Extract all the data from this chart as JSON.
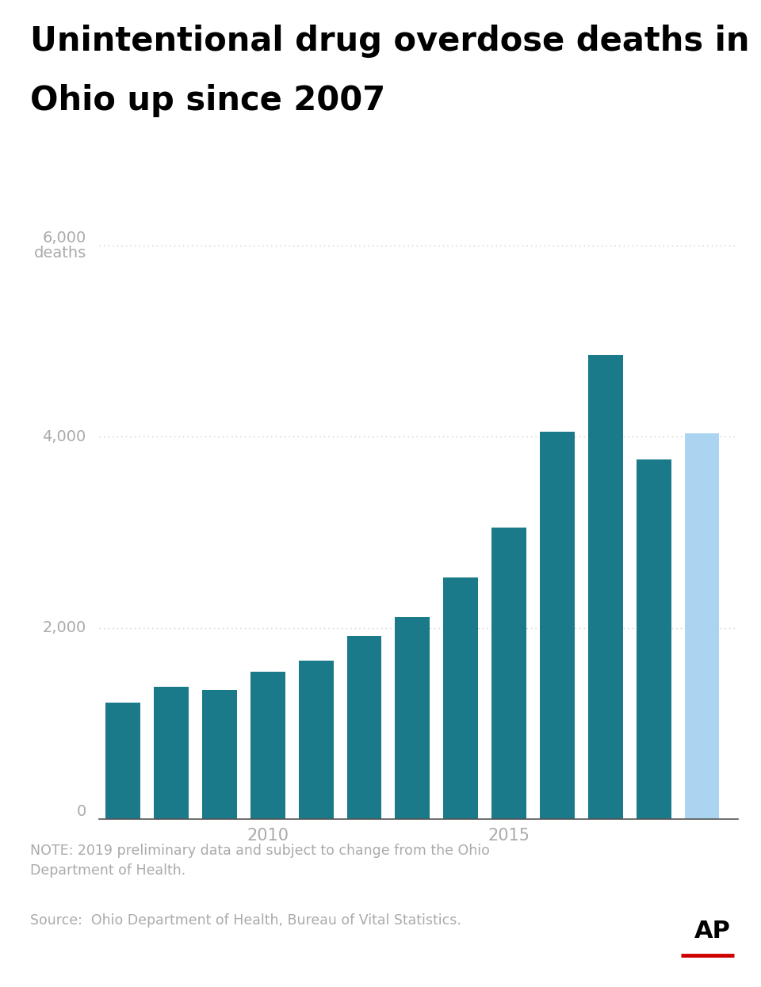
{
  "title_line1": "Unintentional drug overdose deaths in",
  "title_line2": "Ohio up since 2007",
  "years": [
    2007,
    2008,
    2009,
    2010,
    2011,
    2012,
    2013,
    2014,
    2015,
    2016,
    2017,
    2018,
    2019
  ],
  "values": [
    1218,
    1383,
    1350,
    1544,
    1654,
    1914,
    2110,
    2531,
    3050,
    4050,
    4854,
    3764,
    4030
  ],
  "bar_colors": [
    "#1a7a8a",
    "#1a7a8a",
    "#1a7a8a",
    "#1a7a8a",
    "#1a7a8a",
    "#1a7a8a",
    "#1a7a8a",
    "#1a7a8a",
    "#1a7a8a",
    "#1a7a8a",
    "#1a7a8a",
    "#1a7a8a",
    "#aad4f0"
  ],
  "ylim": [
    0,
    6500
  ],
  "yticks": [
    0,
    2000,
    4000,
    6000
  ],
  "xtick_years": [
    2010,
    2015
  ],
  "note_text": "NOTE: 2019 preliminary data and subject to change from the Ohio\nDepartment of Health.",
  "source_text": "Source:  Ohio Department of Health, Bureau of Vital Statistics.",
  "background_color": "#ffffff",
  "bar_teal": "#1a7a8a",
  "bar_lightblue": "#aad4f0",
  "grid_color": "#cccccc",
  "text_color": "#aaaaaa",
  "title_color": "#000000",
  "note_color": "#aaaaaa",
  "ap_red": "#cc0000"
}
